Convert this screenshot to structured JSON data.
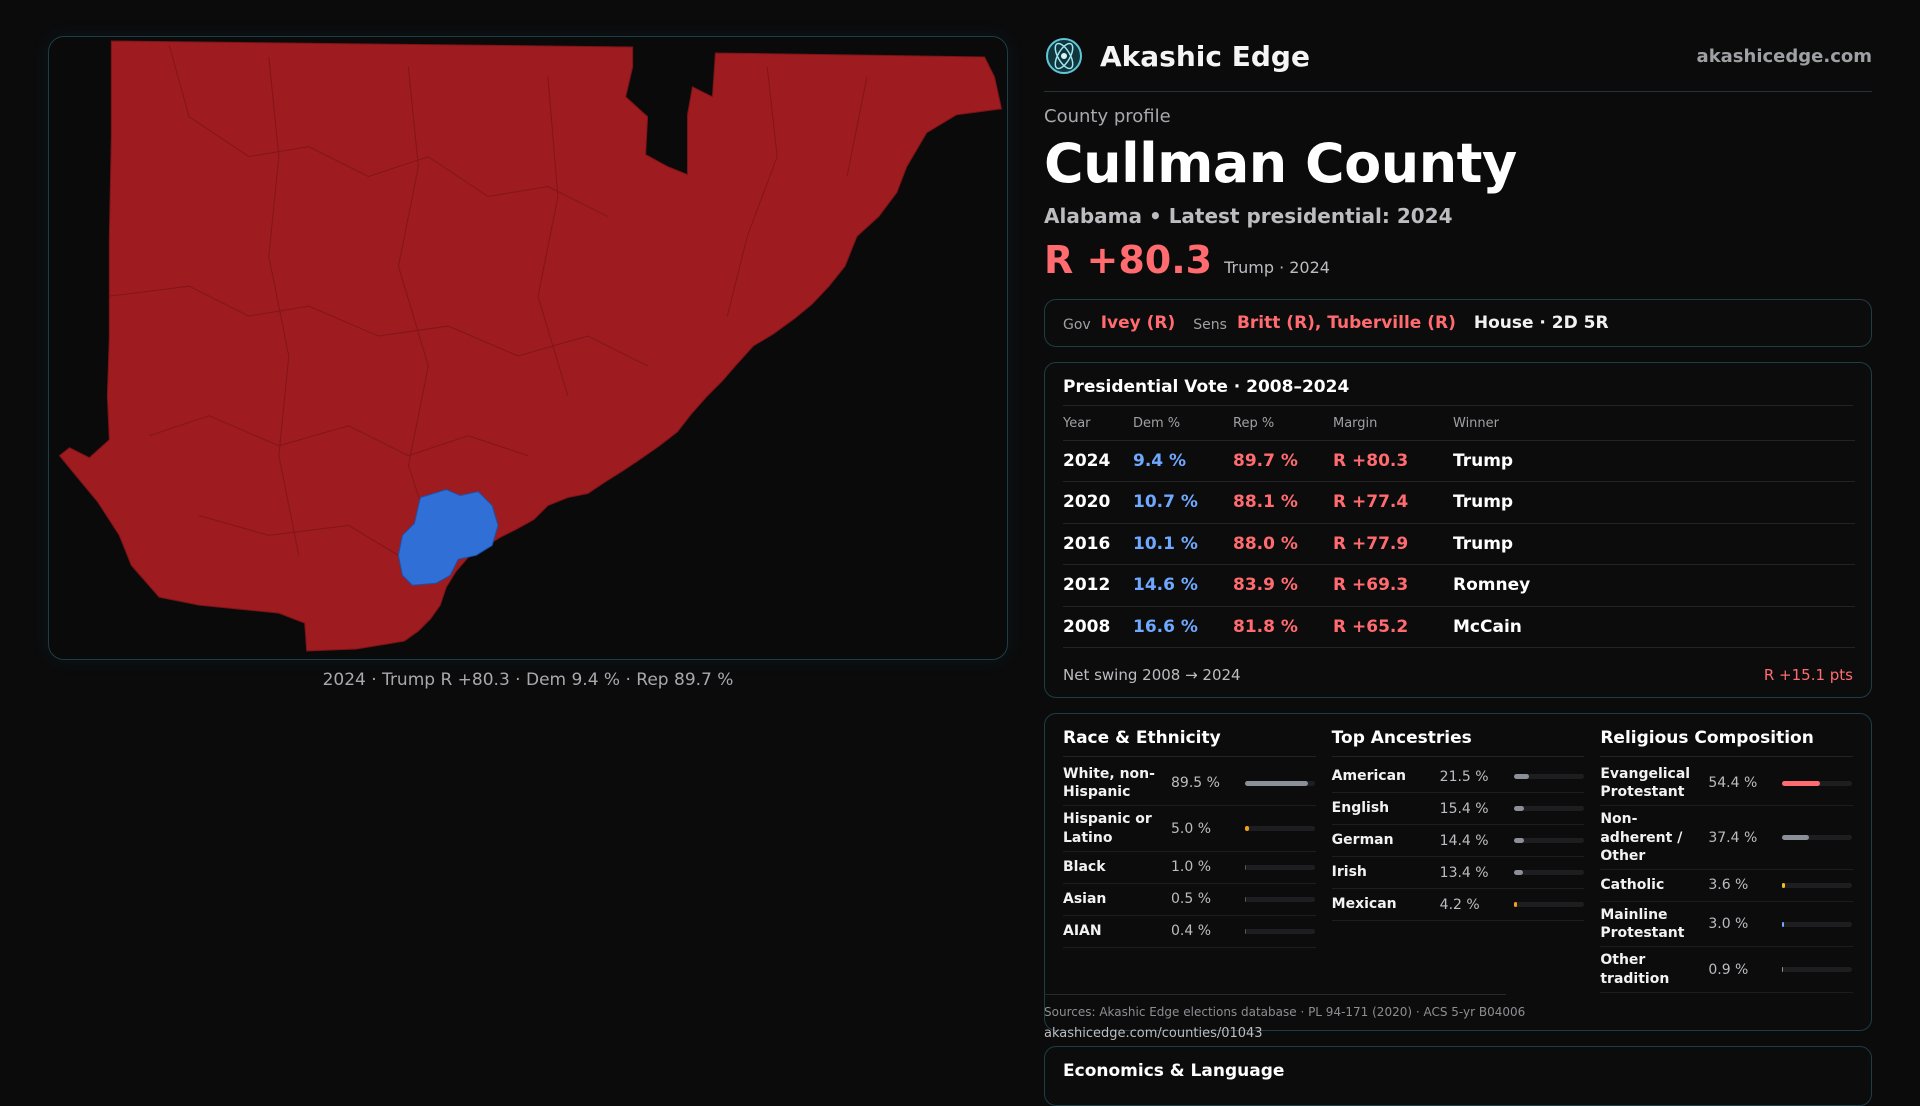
{
  "brand": {
    "name": "Akashic Edge",
    "url": "akashicedge.com",
    "logo_icon": "atom-globe-icon"
  },
  "profile": {
    "kicker": "County profile",
    "county": "Cullman County",
    "subtitle": "Alabama • Latest presidential: 2024",
    "margin": "R +80.3",
    "margin_note": "Trump · 2024"
  },
  "officials": {
    "gov_label": "Gov",
    "gov": "Ivey (R)",
    "sens_label": "Sens",
    "sens": "Britt (R), Tuberville (R)",
    "house": "House · 2D 5R"
  },
  "map": {
    "caption": "2024 · Trump R +80.3 · Dem 9.4 % · Rep 89.7 %",
    "colors": {
      "rep": "#9e1b1f",
      "dem": "#2f6fd6",
      "background": "#0a0a0a"
    }
  },
  "presidential": {
    "title": "Presidential Vote · 2008–2024",
    "columns": [
      "Year",
      "Dem %",
      "Rep %",
      "Margin",
      "Winner"
    ],
    "rows": [
      [
        "2024",
        "9.4 %",
        "89.7 %",
        "R +80.3",
        "Trump"
      ],
      [
        "2020",
        "10.7 %",
        "88.1 %",
        "R +77.4",
        "Trump"
      ],
      [
        "2016",
        "10.1 %",
        "88.0 %",
        "R +77.9",
        "Trump"
      ],
      [
        "2012",
        "14.6 %",
        "83.9 %",
        "R +69.3",
        "Romney"
      ],
      [
        "2008",
        "16.6 %",
        "81.8 %",
        "R +65.2",
        "McCain"
      ]
    ],
    "swing_label": "Net swing 2008 → 2024",
    "swing_value": "R +15.1 pts"
  },
  "race": {
    "title": "Race & Ethnicity",
    "rows": [
      {
        "label": "White, non-Hispanic",
        "value": "89.5 %",
        "pct": 89.5,
        "color": "#8a8f98"
      },
      {
        "label": "Hispanic or Latino",
        "value": "5.0 %",
        "pct": 5.0,
        "color": "#f0a020"
      },
      {
        "label": "Black",
        "value": "1.0 %",
        "pct": 1.0,
        "color": "#555"
      },
      {
        "label": "Asian",
        "value": "0.5 %",
        "pct": 0.5,
        "color": "#555"
      },
      {
        "label": "AIAN",
        "value": "0.4 %",
        "pct": 0.4,
        "color": "#555"
      }
    ]
  },
  "ancestry": {
    "title": "Top Ancestries",
    "rows": [
      {
        "label": "American",
        "value": "21.5 %",
        "pct": 21.5,
        "color": "#8a8f98"
      },
      {
        "label": "English",
        "value": "15.4 %",
        "pct": 15.4,
        "color": "#8a8f98"
      },
      {
        "label": "German",
        "value": "14.4 %",
        "pct": 14.4,
        "color": "#8a8f98"
      },
      {
        "label": "Irish",
        "value": "13.4 %",
        "pct": 13.4,
        "color": "#8a8f98"
      },
      {
        "label": "Mexican",
        "value": "4.2 %",
        "pct": 4.2,
        "color": "#f0a020"
      }
    ]
  },
  "religion": {
    "title": "Religious Composition",
    "rows": [
      {
        "label": "Evangelical Protestant",
        "value": "54.4 %",
        "pct": 54.4,
        "color": "#ff6b6f"
      },
      {
        "label": "Non-adherent / Other",
        "value": "37.4 %",
        "pct": 37.4,
        "color": "#8a8f98"
      },
      {
        "label": "Catholic",
        "value": "3.6 %",
        "pct": 3.6,
        "color": "#f0c020"
      },
      {
        "label": "Mainline Protestant",
        "value": "3.0 %",
        "pct": 3.0,
        "color": "#6ea8ff"
      },
      {
        "label": "Other tradition",
        "value": "0.9 %",
        "pct": 0.9,
        "color": "#8a8f98"
      }
    ]
  },
  "sources": {
    "text": "Sources: Akashic Edge elections database · PL 94-171 (2020) · ACS 5-yr B04006",
    "url": "akashicedge.com/counties/01043"
  },
  "economics": {
    "title": "Economics & Language"
  }
}
